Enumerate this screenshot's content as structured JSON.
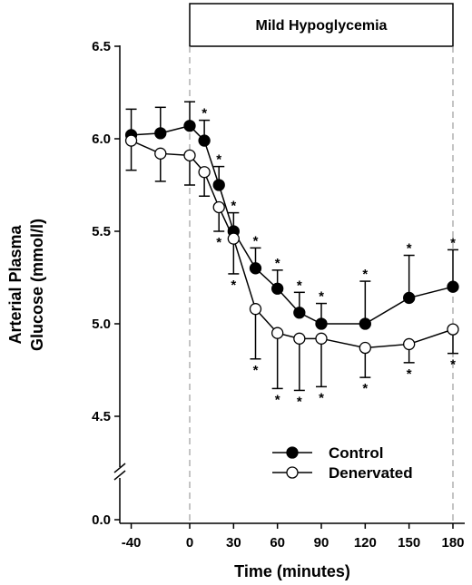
{
  "chart_data": {
    "type": "line",
    "title": "",
    "xlabel": "Time (minutes)",
    "ylabel": [
      "Arterial Plasma",
      "Glucose (mmol/l)"
    ],
    "x_ticks": [
      -40,
      0,
      30,
      60,
      90,
      120,
      150,
      180
    ],
    "y_ticks": [
      "6.5",
      "6.0",
      "5.5",
      "5.0",
      "4.5",
      "0.0"
    ],
    "ylim": [
      4.0,
      6.5
    ],
    "y_axis_break": true,
    "x": [
      -40,
      -20,
      0,
      10,
      20,
      30,
      45,
      60,
      75,
      90,
      120,
      150,
      180
    ],
    "series": [
      {
        "name": "Control",
        "marker": "filled-circle",
        "color": "#000000",
        "values": [
          6.02,
          6.03,
          6.07,
          5.99,
          5.75,
          5.5,
          5.3,
          5.19,
          5.06,
          5.0,
          5.0,
          5.14,
          5.2
        ],
        "error": [
          0.14,
          0.14,
          0.13,
          0.11,
          0.1,
          0.1,
          0.11,
          0.1,
          0.11,
          0.11,
          0.23,
          0.23,
          0.2
        ],
        "error_direction": "up",
        "significant": [
          false,
          false,
          false,
          true,
          true,
          true,
          true,
          true,
          true,
          true,
          true,
          true,
          true
        ]
      },
      {
        "name": "Denervated",
        "marker": "open-circle",
        "color": "#000000",
        "values": [
          5.99,
          5.92,
          5.91,
          5.82,
          5.63,
          5.46,
          5.08,
          4.95,
          4.92,
          4.92,
          4.87,
          4.89,
          4.97
        ],
        "error": [
          0.16,
          0.15,
          0.16,
          0.13,
          0.13,
          0.19,
          0.27,
          0.3,
          0.28,
          0.26,
          0.16,
          0.1,
          0.13
        ],
        "error_direction": "down",
        "significant": [
          false,
          false,
          false,
          false,
          true,
          true,
          true,
          true,
          true,
          true,
          true,
          true,
          true
        ]
      }
    ],
    "significance_marker": "*",
    "annotation": {
      "text": "Mild Hypoglycemia",
      "x_start": 0,
      "x_end": 180
    },
    "legend_position": "bottom-right",
    "grid": false
  }
}
